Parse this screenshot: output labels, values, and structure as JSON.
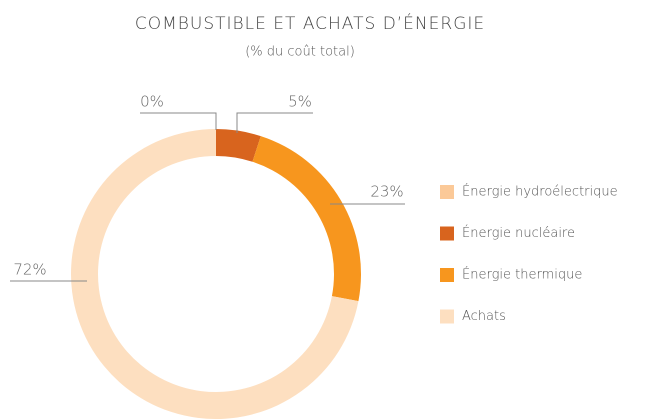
{
  "chart_data": {
    "type": "donut",
    "title": "COMBUSTIBLE ET ACHATS D’ÉNERGIE",
    "subtitle": "(% du coût total)",
    "categories": [
      "Énergie hydroélectrique",
      "Énergie nucléaire",
      "Énergie thermique",
      "Achats"
    ],
    "values": [
      0,
      5,
      23,
      72
    ],
    "value_labels": [
      "0%",
      "5%",
      "23%",
      "72%"
    ],
    "colors": [
      "#fbc998",
      "#d8641e",
      "#f7961e",
      "#fddfc0"
    ],
    "legend": "right"
  }
}
